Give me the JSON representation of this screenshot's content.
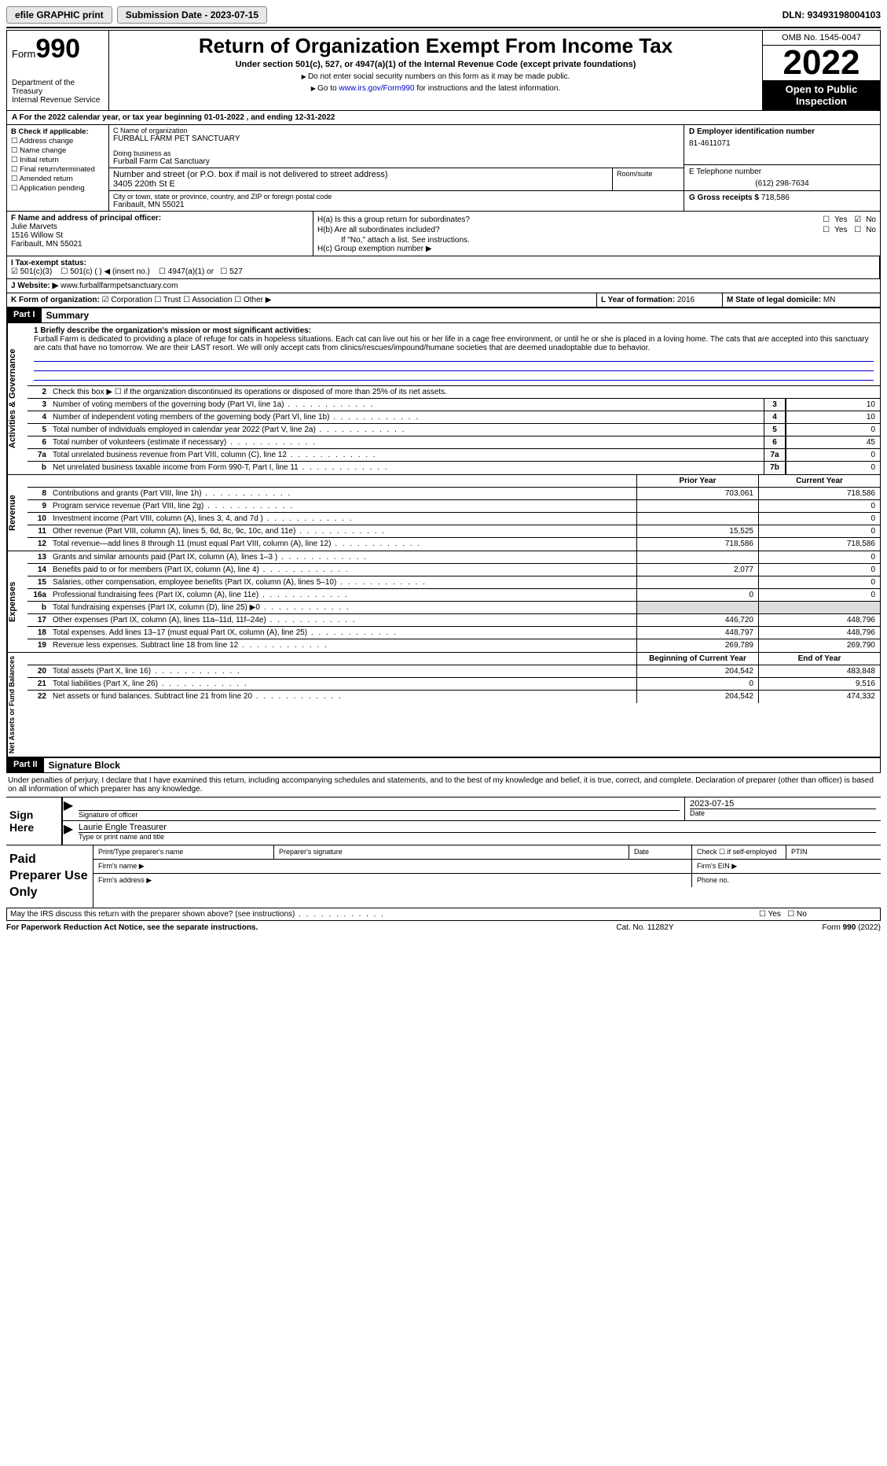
{
  "topbar": {
    "efile_label": "efile GRAPHIC print",
    "submission_label": "Submission Date - 2023-07-15",
    "dln_label": "DLN: 93493198004103"
  },
  "header": {
    "form_word": "Form",
    "form_number": "990",
    "dept": "Department of the Treasury",
    "irs": "Internal Revenue Service",
    "title": "Return of Organization Exempt From Income Tax",
    "subtitle": "Under section 501(c), 527, or 4947(a)(1) of the Internal Revenue Code (except private foundations)",
    "note1": "Do not enter social security numbers on this form as it may be made public.",
    "note2_pre": "Go to ",
    "note2_link": "www.irs.gov/Form990",
    "note2_post": " for instructions and the latest information.",
    "omb": "OMB No. 1545-0047",
    "year": "2022",
    "open": "Open to Public Inspection"
  },
  "row_a": "A  For the 2022 calendar year, or tax year beginning 01-01-2022     , and ending 12-31-2022",
  "col_b": {
    "header": "B Check if applicable:",
    "items": [
      "Address change",
      "Name change",
      "Initial return",
      "Final return/terminated",
      "Amended return",
      "Application pending"
    ]
  },
  "col_c": {
    "name_lab": "C Name of organization",
    "name_val": "FURBALL FARM PET SANCTUARY",
    "dba_lab": "Doing business as",
    "dba_val": "Furball Farm Cat Sanctuary",
    "street_lab": "Number and street (or P.O. box if mail is not delivered to street address)",
    "street_val": "3405 220th St E",
    "room_lab": "Room/suite",
    "city_lab": "City or town, state or province, country, and ZIP or foreign postal code",
    "city_val": "Faribault, MN  55021"
  },
  "col_d": {
    "ein_lab": "D Employer identification number",
    "ein_val": "81-4611071",
    "phone_lab": "E Telephone number",
    "phone_val": "(612) 298-7634",
    "gross_lab": "G Gross receipts $",
    "gross_val": "718,586"
  },
  "col_f": {
    "lab": "F  Name and address of principal officer:",
    "name": "Julie Marvets",
    "street": "1516 Willow St",
    "city": "Faribault, MN  55021"
  },
  "col_h": {
    "ha_lab": "H(a)  Is this a group return for subordinates?",
    "hb_lab": "H(b)  Are all subordinates included?",
    "hb_note": "If \"No,\" attach a list. See instructions.",
    "hc_lab": "H(c)  Group exemption number ▶",
    "yes": "Yes",
    "no": "No"
  },
  "row_i": {
    "lab": "I   Tax-exempt status:",
    "opt1": "501(c)(3)",
    "opt2": "501(c) (   ) ◀ (insert no.)",
    "opt3": "4947(a)(1) or",
    "opt4": "527"
  },
  "row_j": {
    "lab": "J   Website: ▶",
    "val": "www.furballfarmpetsanctuary.com"
  },
  "row_k": {
    "lab": "K Form of organization:",
    "opts": [
      "Corporation",
      "Trust",
      "Association",
      "Other ▶"
    ],
    "l_lab": "L Year of formation: ",
    "l_val": "2016",
    "m_lab": "M State of legal domicile: ",
    "m_val": "MN"
  },
  "part1": {
    "num": "Part I",
    "title": "Summary"
  },
  "mission": {
    "lab": "1   Briefly describe the organization's mission or most significant activities:",
    "text": "Furball Farm is dedicated to providing a place of refuge for cats in hopeless situations. Each cat can live out his or her life in a cage free environment, or until he or she is placed in a loving home. The cats that are accepted into this sanctuary are cats that have no tomorrow. We are their LAST resort. We will only accept cats from clinics/rescues/impound/humane societies that are deemed unadoptable due to behavior."
  },
  "governance": {
    "tab": "Activities & Governance",
    "line2": "Check this box ▶ ☐  if the organization discontinued its operations or disposed of more than 25% of its net assets.",
    "lines": [
      {
        "n": "3",
        "d": "Number of voting members of the governing body (Part VI, line 1a)",
        "box": "3",
        "v": "10"
      },
      {
        "n": "4",
        "d": "Number of independent voting members of the governing body (Part VI, line 1b)",
        "box": "4",
        "v": "10"
      },
      {
        "n": "5",
        "d": "Total number of individuals employed in calendar year 2022 (Part V, line 2a)",
        "box": "5",
        "v": "0"
      },
      {
        "n": "6",
        "d": "Total number of volunteers (estimate if necessary)",
        "box": "6",
        "v": "45"
      },
      {
        "n": "7a",
        "d": "Total unrelated business revenue from Part VIII, column (C), line 12",
        "box": "7a",
        "v": "0"
      },
      {
        "n": "b",
        "d": "Net unrelated business taxable income from Form 990-T, Part I, line 11",
        "box": "7b",
        "v": "0"
      }
    ]
  },
  "revenue": {
    "tab": "Revenue",
    "hdr_prior": "Prior Year",
    "hdr_curr": "Current Year",
    "lines": [
      {
        "n": "8",
        "d": "Contributions and grants (Part VIII, line 1h)",
        "p": "703,061",
        "c": "718,586"
      },
      {
        "n": "9",
        "d": "Program service revenue (Part VIII, line 2g)",
        "p": "",
        "c": "0"
      },
      {
        "n": "10",
        "d": "Investment income (Part VIII, column (A), lines 3, 4, and 7d )",
        "p": "",
        "c": "0"
      },
      {
        "n": "11",
        "d": "Other revenue (Part VIII, column (A), lines 5, 6d, 8c, 9c, 10c, and 11e)",
        "p": "15,525",
        "c": "0"
      },
      {
        "n": "12",
        "d": "Total revenue—add lines 8 through 11 (must equal Part VIII, column (A), line 12)",
        "p": "718,586",
        "c": "718,586"
      }
    ]
  },
  "expenses": {
    "tab": "Expenses",
    "lines": [
      {
        "n": "13",
        "d": "Grants and similar amounts paid (Part IX, column (A), lines 1–3 )",
        "p": "",
        "c": "0"
      },
      {
        "n": "14",
        "d": "Benefits paid to or for members (Part IX, column (A), line 4)",
        "p": "2,077",
        "c": "0"
      },
      {
        "n": "15",
        "d": "Salaries, other compensation, employee benefits (Part IX, column (A), lines 5–10)",
        "p": "",
        "c": "0"
      },
      {
        "n": "16a",
        "d": "Professional fundraising fees (Part IX, column (A), line 11e)",
        "p": "0",
        "c": "0"
      },
      {
        "n": "b",
        "d": "Total fundraising expenses (Part IX, column (D), line 25) ▶0",
        "p": "grey",
        "c": "grey"
      },
      {
        "n": "17",
        "d": "Other expenses (Part IX, column (A), lines 11a–11d, 11f–24e)",
        "p": "446,720",
        "c": "448,796"
      },
      {
        "n": "18",
        "d": "Total expenses. Add lines 13–17 (must equal Part IX, column (A), line 25)",
        "p": "448,797",
        "c": "448,796"
      },
      {
        "n": "19",
        "d": "Revenue less expenses. Subtract line 18 from line 12",
        "p": "269,789",
        "c": "269,790"
      }
    ]
  },
  "netassets": {
    "tab": "Net Assets or Fund Balances",
    "hdr_begin": "Beginning of Current Year",
    "hdr_end": "End of Year",
    "lines": [
      {
        "n": "20",
        "d": "Total assets (Part X, line 16)",
        "p": "204,542",
        "c": "483,848"
      },
      {
        "n": "21",
        "d": "Total liabilities (Part X, line 26)",
        "p": "0",
        "c": "9,516"
      },
      {
        "n": "22",
        "d": "Net assets or fund balances. Subtract line 21 from line 20",
        "p": "204,542",
        "c": "474,332"
      }
    ]
  },
  "part2": {
    "num": "Part II",
    "title": "Signature Block",
    "text": "Under penalties of perjury, I declare that I have examined this return, including accompanying schedules and statements, and to the best of my knowledge and belief, it is true, correct, and complete. Declaration of preparer (other than officer) is based on all information of which preparer has any knowledge."
  },
  "sign": {
    "label": "Sign Here",
    "sig_lab": "Signature of officer",
    "date_val": "2023-07-15",
    "date_lab": "Date",
    "name_val": "Laurie Engle  Treasurer",
    "name_lab": "Type or print name and title"
  },
  "prep": {
    "label": "Paid Preparer Use Only",
    "h1": "Print/Type preparer's name",
    "h2": "Preparer's signature",
    "h3": "Date",
    "h4": "Check ☐ if self-employed",
    "h5": "PTIN",
    "firm_name": "Firm's name    ▶",
    "firm_ein": "Firm's EIN ▶",
    "firm_addr": "Firm's address ▶",
    "phone": "Phone no."
  },
  "discuss": {
    "q": "May the IRS discuss this return with the preparer shown above? (see instructions)",
    "yes": "Yes",
    "no": "No"
  },
  "footer": {
    "l": "For Paperwork Reduction Act Notice, see the separate instructions.",
    "c": "Cat. No. 11282Y",
    "r": "Form 990 (2022)"
  }
}
